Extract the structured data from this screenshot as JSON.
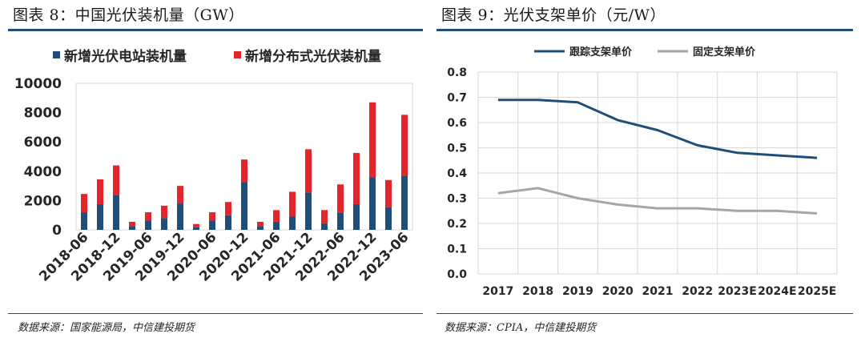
{
  "left_figure": {
    "title": "图表 8：中国光伏装机量（GW）",
    "source": "数据来源：国家能源局，中信建投期货",
    "chart_data": {
      "type": "bar",
      "stacked": true,
      "categories": [
        "2018-06",
        "2018-09",
        "2018-12",
        "2019-03",
        "2019-06",
        "2019-09",
        "2019-12",
        "2020-03",
        "2020-06",
        "2020-09",
        "2020-12",
        "2021-03",
        "2021-06",
        "2021-09",
        "2021-12",
        "2022-03",
        "2022-06",
        "2022-09",
        "2022-12",
        "2023-03",
        "2023-06"
      ],
      "tick_labels": [
        "2018-06",
        "2018-12",
        "2019-06",
        "2019-12",
        "2020-06",
        "2020-12",
        "2021-06",
        "2021-12",
        "2022-06",
        "2022-12",
        "2023-06"
      ],
      "series": [
        {
          "name": "新增光伏电站装机量",
          "color": "#1f4e79",
          "values": [
            1200,
            1750,
            2350,
            250,
            650,
            800,
            1800,
            180,
            650,
            1000,
            3250,
            250,
            550,
            900,
            2550,
            450,
            1150,
            1750,
            3600,
            1550,
            3700
          ]
        },
        {
          "name": "新增分布式光伏装机量",
          "color": "#e3262b",
          "values": [
            1250,
            1700,
            2050,
            300,
            550,
            850,
            1200,
            220,
            550,
            900,
            1550,
            300,
            800,
            1700,
            2950,
            900,
            1950,
            3500,
            5100,
            1850,
            4150
          ]
        }
      ],
      "ylim": [
        0,
        10000
      ],
      "yticks": [
        0,
        2000,
        4000,
        6000,
        8000,
        10000
      ],
      "legend_position": "top",
      "xlabel": "",
      "ylabel": ""
    }
  },
  "right_figure": {
    "title": "图表 9：光伏支架单价（元/W）",
    "source": "数据来源：CPIA，中信建投期货",
    "chart_data": {
      "type": "line",
      "categories": [
        "2017",
        "2018",
        "2019",
        "2020",
        "2021",
        "2022",
        "2023E",
        "2024E",
        "2025E"
      ],
      "series": [
        {
          "name": "跟踪支架单价",
          "color": "#1f4e79",
          "values": [
            0.69,
            0.69,
            0.68,
            0.61,
            0.57,
            0.51,
            0.48,
            0.47,
            0.46
          ]
        },
        {
          "name": "固定支架单价",
          "color": "#a6a6a6",
          "values": [
            0.32,
            0.34,
            0.3,
            0.275,
            0.26,
            0.26,
            0.25,
            0.25,
            0.24
          ]
        }
      ],
      "ylim": [
        0,
        0.8
      ],
      "yticks": [
        0.0,
        0.1,
        0.2,
        0.3,
        0.4,
        0.5,
        0.6,
        0.7,
        0.8
      ],
      "ytick_labels": [
        "0.0",
        "0.1",
        "0.2",
        "0.3",
        "0.4",
        "0.5",
        "0.6",
        "0.7",
        "0.8"
      ],
      "grid": true,
      "legend_position": "top",
      "xlabel": "",
      "ylabel": ""
    }
  }
}
